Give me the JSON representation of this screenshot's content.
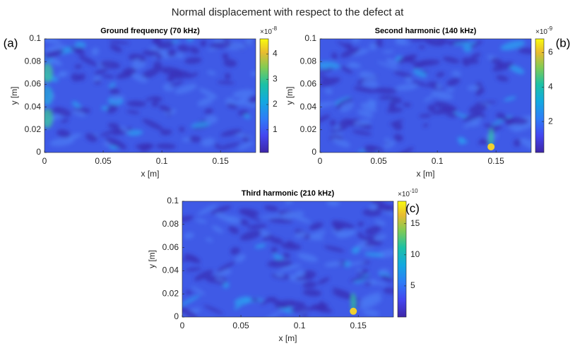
{
  "title": "Normal displacement with respect to the defect at",
  "chart_data": [
    {
      "type": "heatmap",
      "title": "Ground frequency (70 kHz)",
      "panel_label": "(a)",
      "xlabel": "x [m]",
      "ylabel": "y [m]",
      "xlim": [
        0,
        0.18
      ],
      "ylim": [
        0,
        0.1
      ],
      "xticks": [
        0,
        0.05,
        0.1,
        0.15
      ],
      "yticks": [
        0,
        0.02,
        0.04,
        0.06,
        0.08,
        0.1
      ],
      "colorbar": {
        "clim": [
          0.1,
          4.6
        ],
        "ticks": [
          1,
          2,
          3,
          4
        ],
        "exponent": {
          "base": "×10",
          "power": "-8"
        }
      }
    },
    {
      "type": "heatmap",
      "title": "Second harmonic (140 kHz)",
      "panel_label": "(b)",
      "xlabel": "x [m]",
      "ylabel": "y [m]",
      "xlim": [
        0,
        0.18
      ],
      "ylim": [
        0,
        0.1
      ],
      "xticks": [
        0,
        0.05,
        0.1,
        0.15
      ],
      "yticks": [
        0,
        0.02,
        0.04,
        0.06,
        0.08,
        0.1
      ],
      "colorbar": {
        "clim": [
          0.2,
          6.8
        ],
        "ticks": [
          2,
          4,
          6
        ],
        "exponent": {
          "base": "×10",
          "power": "-9"
        }
      }
    },
    {
      "type": "heatmap",
      "title": "Third harmonic (210 kHz)",
      "panel_label": "(c)",
      "xlabel": "x [m]",
      "ylabel": "y [m]",
      "xlim": [
        0,
        0.18
      ],
      "ylim": [
        0,
        0.1
      ],
      "xticks": [
        0,
        0.05,
        0.1,
        0.15
      ],
      "yticks": [
        0,
        0.02,
        0.04,
        0.06,
        0.08,
        0.1
      ],
      "colorbar": {
        "clim": [
          0,
          18.6
        ],
        "ticks": [
          5,
          10,
          15
        ],
        "exponent": {
          "base": "×10",
          "power": "-10"
        }
      }
    }
  ]
}
